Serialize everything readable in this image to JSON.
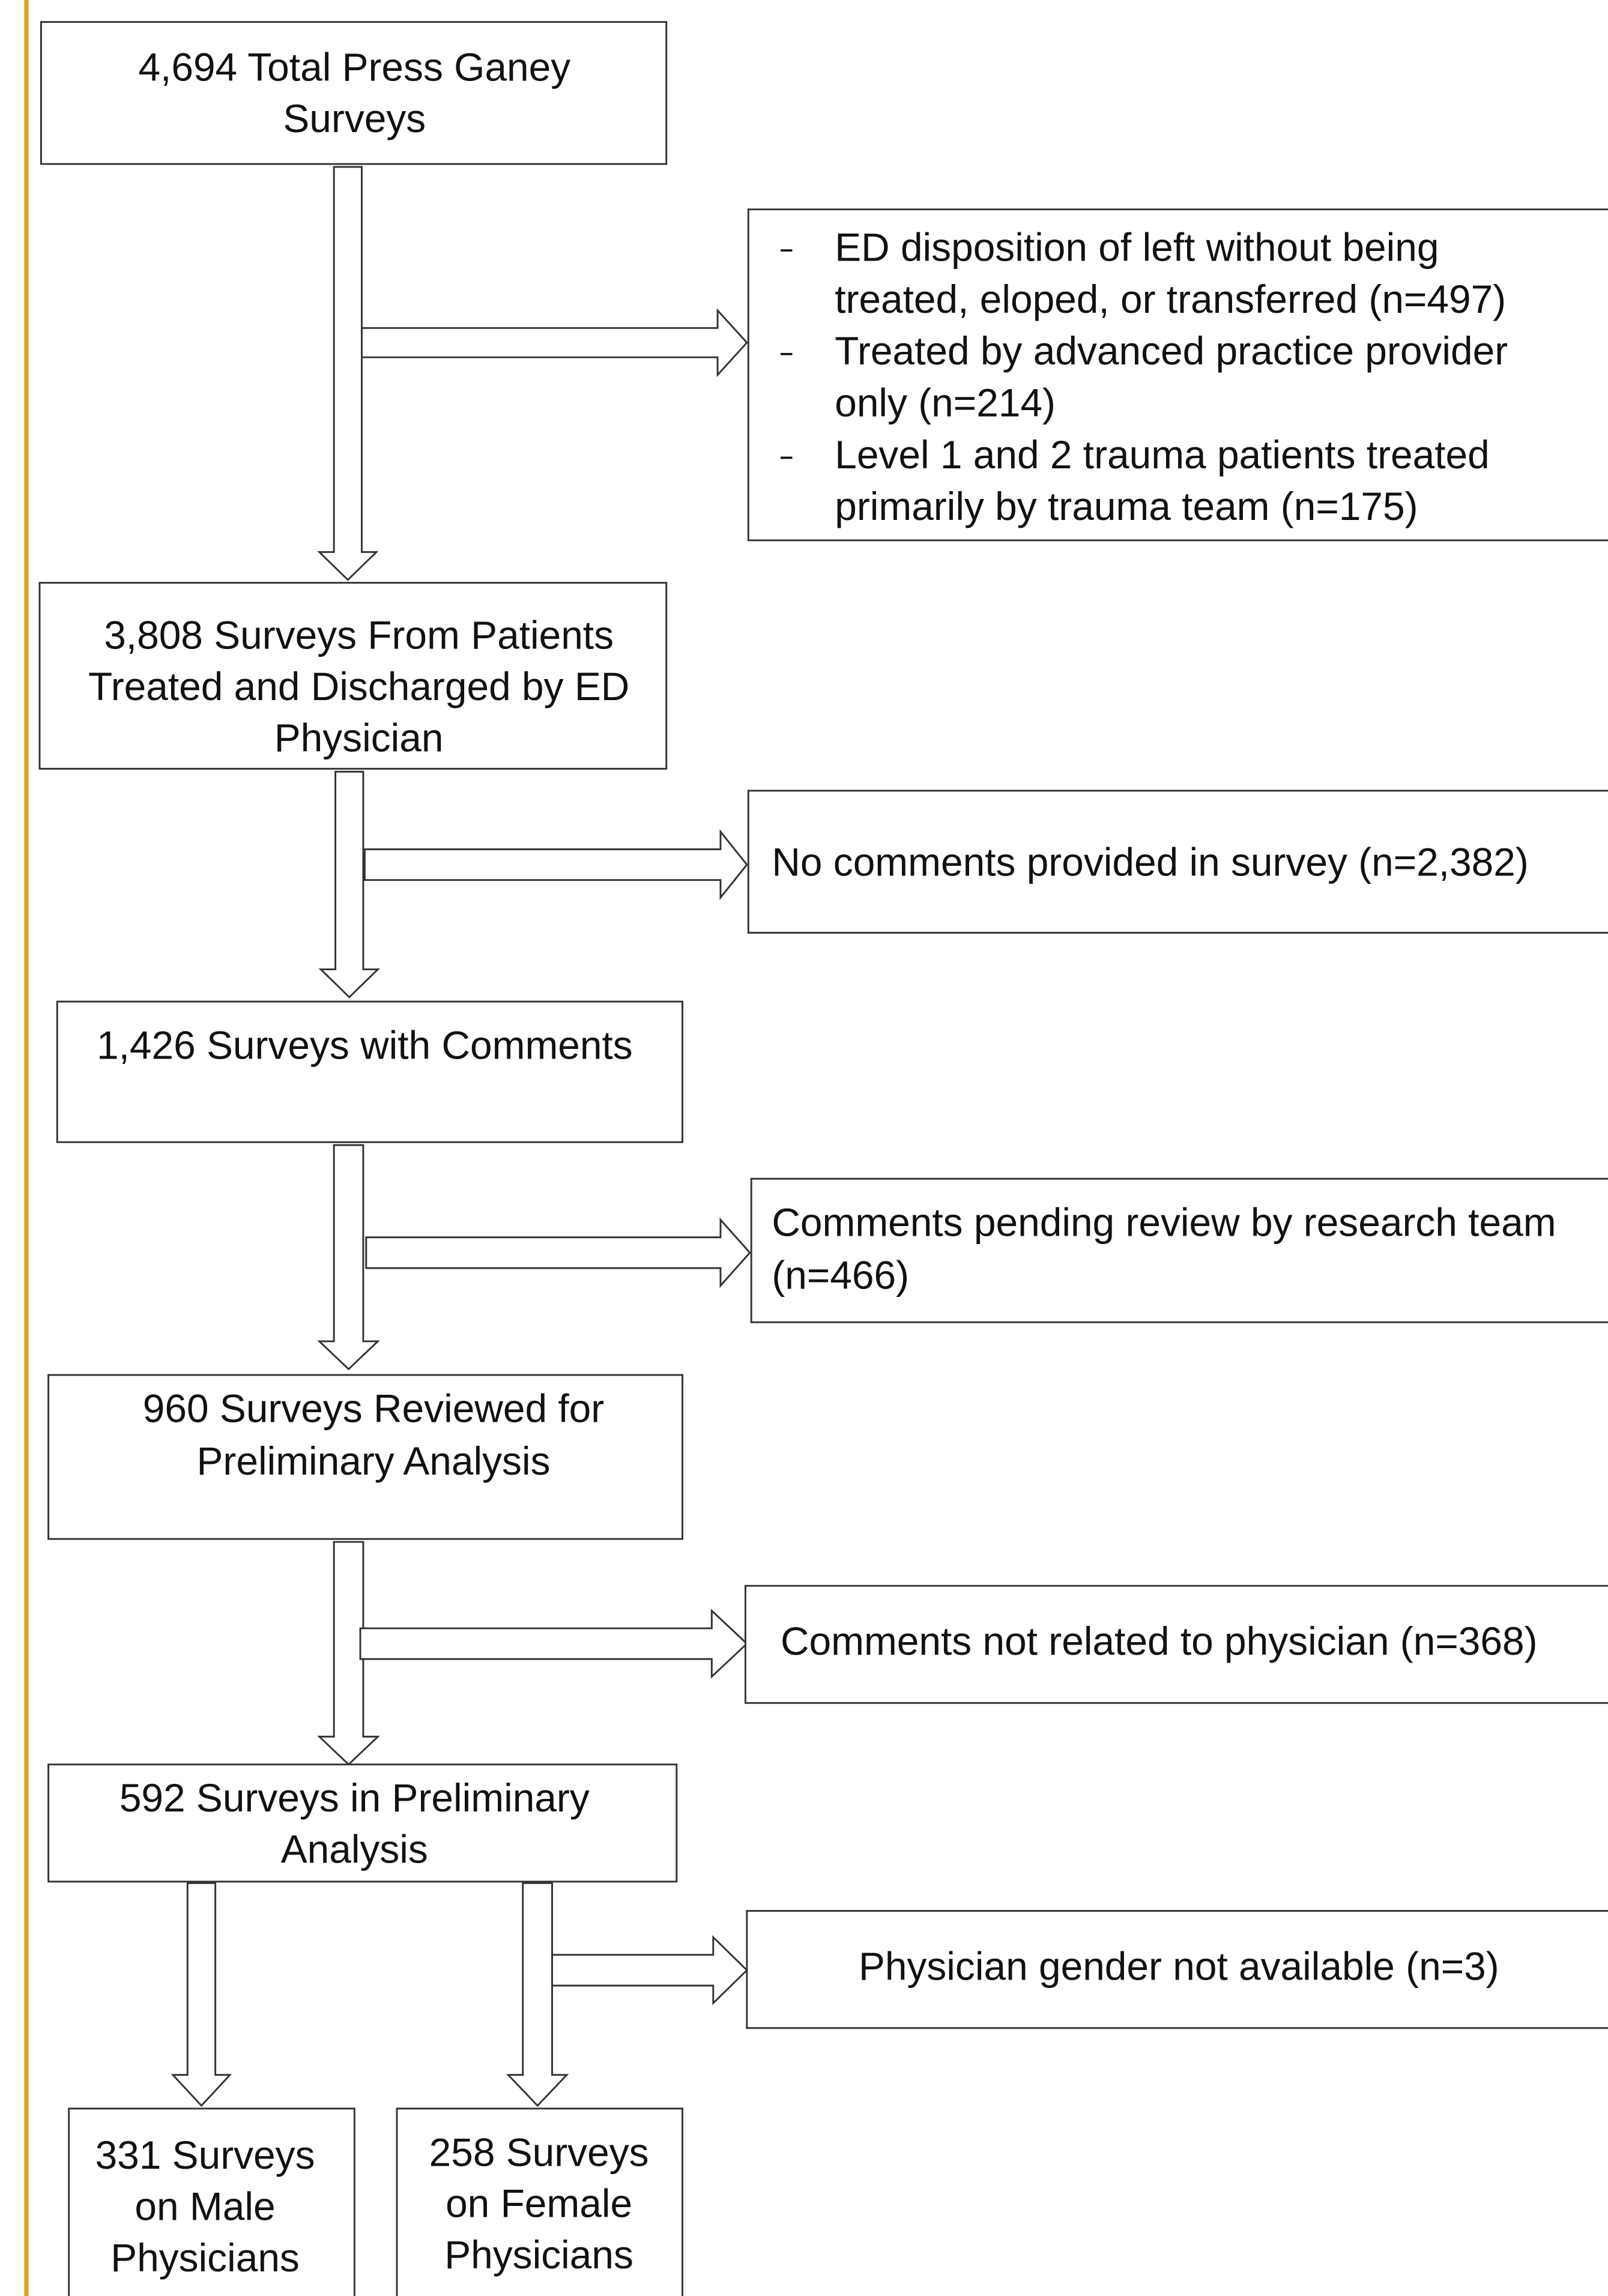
{
  "nodes": [
    {
      "lines": [
        "4,694 Total Press Ganey",
        "Surveys"
      ]
    },
    {
      "lines": [
        "3,808 Surveys From Patients",
        "Treated and Discharged by ED",
        "Physician"
      ]
    },
    {
      "lines": [
        "1,426 Surveys with Comments"
      ]
    },
    {
      "lines": [
        "960 Surveys Reviewed for",
        "Preliminary Analysis"
      ]
    },
    {
      "lines": [
        "592 Surveys in Preliminary",
        "Analysis"
      ]
    },
    {
      "lines": [
        "331 Surveys",
        "on Male",
        "Physicians"
      ]
    },
    {
      "lines": [
        "258 Surveys",
        "on Female",
        "Physicians"
      ]
    }
  ],
  "exclusions": [
    {
      "items": [
        {
          "lines": [
            "ED disposition of left without being",
            "treated, eloped, or transferred (n=497)"
          ]
        },
        {
          "lines": [
            "Treated by advanced practice provider",
            "only (n=214)"
          ]
        },
        {
          "lines": [
            "Level 1 and 2 trauma patients treated",
            "primarily by trauma team (n=175)"
          ]
        }
      ]
    },
    {
      "items": [
        {
          "lines": [
            "No comments provided in survey (n=2,382)"
          ]
        }
      ]
    },
    {
      "items": [
        {
          "lines": [
            "Comments pending review by research team",
            "(n=466)"
          ]
        }
      ]
    },
    {
      "items": [
        {
          "lines": [
            "Comments not related to physician (n=368)"
          ]
        }
      ]
    },
    {
      "items": [
        {
          "lines": [
            "Physician gender not available (n=3)"
          ]
        }
      ]
    }
  ]
}
